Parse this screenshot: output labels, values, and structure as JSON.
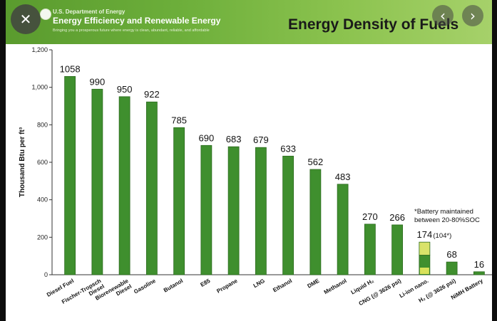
{
  "banner": {
    "org": "U.S. Department of Energy",
    "program": "Energy Efficiency and Renewable Energy",
    "tagline": "Bringing you a prosperous future where energy is clean, abundant, reliable, and affordable"
  },
  "viewer": {
    "close_icon": "close-icon",
    "prev_icon": "chevron-left-icon",
    "next_icon": "chevron-right-icon",
    "close_glyph": "✕",
    "prev_glyph": "‹",
    "next_glyph": "›"
  },
  "colors": {
    "bar": "#3f8f2e",
    "bar_stroke": "#2b6a1e",
    "banner": "#6cae3a",
    "liion_bottom": "#d8e25a",
    "liion_top": "#d9e36a"
  },
  "chart_data": {
    "type": "bar",
    "title": "Energy Density of Fuels",
    "ylabel": "Thousand Btu per ft³",
    "xlabel": "",
    "ylim": [
      0,
      1200
    ],
    "yticks": [
      0,
      200,
      400,
      600,
      800,
      1000,
      1200
    ],
    "ytick_labels": [
      "0",
      "200",
      "400",
      "600",
      "800",
      "1,000",
      "1,200"
    ],
    "grid": false,
    "categories": [
      "Diesel Fuel",
      "Fischer-Tropsch Diesel",
      "Biorenewable Diesel",
      "Gasoline",
      "Butanol",
      "E85",
      "Propane",
      "LNG",
      "Ethanol",
      "DME",
      "Methanol",
      "Liquid H₂",
      "CNG (@ 3626 psi)",
      "Li-ion nano.",
      "H₂ (@ 3626 psi)",
      "NiMH Battery"
    ],
    "category_labels": [
      [
        "Diesel Fuel"
      ],
      [
        "Fischer-Tropsch",
        "Diesel"
      ],
      [
        "Biorenewable",
        "Diesel"
      ],
      [
        "Gasoline"
      ],
      [
        "Butanol"
      ],
      [
        "E85"
      ],
      [
        "Propane"
      ],
      [
        "LNG"
      ],
      [
        "Ethanol"
      ],
      [
        "DME"
      ],
      [
        "Methanol"
      ],
      [
        "Liquid H₂"
      ],
      [
        "CNG (@ 3626 psi)"
      ],
      [
        "Li-ion nano."
      ],
      [
        "H₂ (@ 3626 psi)"
      ],
      [
        "NiMH Battery"
      ]
    ],
    "values": [
      1058,
      990,
      950,
      922,
      785,
      690,
      683,
      679,
      633,
      562,
      483,
      270,
      266,
      174,
      68,
      16
    ],
    "value_labels": [
      "1058",
      "990",
      "950",
      "922",
      "785",
      "690",
      "683",
      "679",
      "633",
      "562",
      "483",
      "270",
      "266",
      "174",
      "68",
      "16"
    ],
    "liion_alt_value": 104,
    "liion_alt_label": "(104*)",
    "annotation": [
      "*Battery maintained",
      "between 20-80%SOC"
    ]
  }
}
